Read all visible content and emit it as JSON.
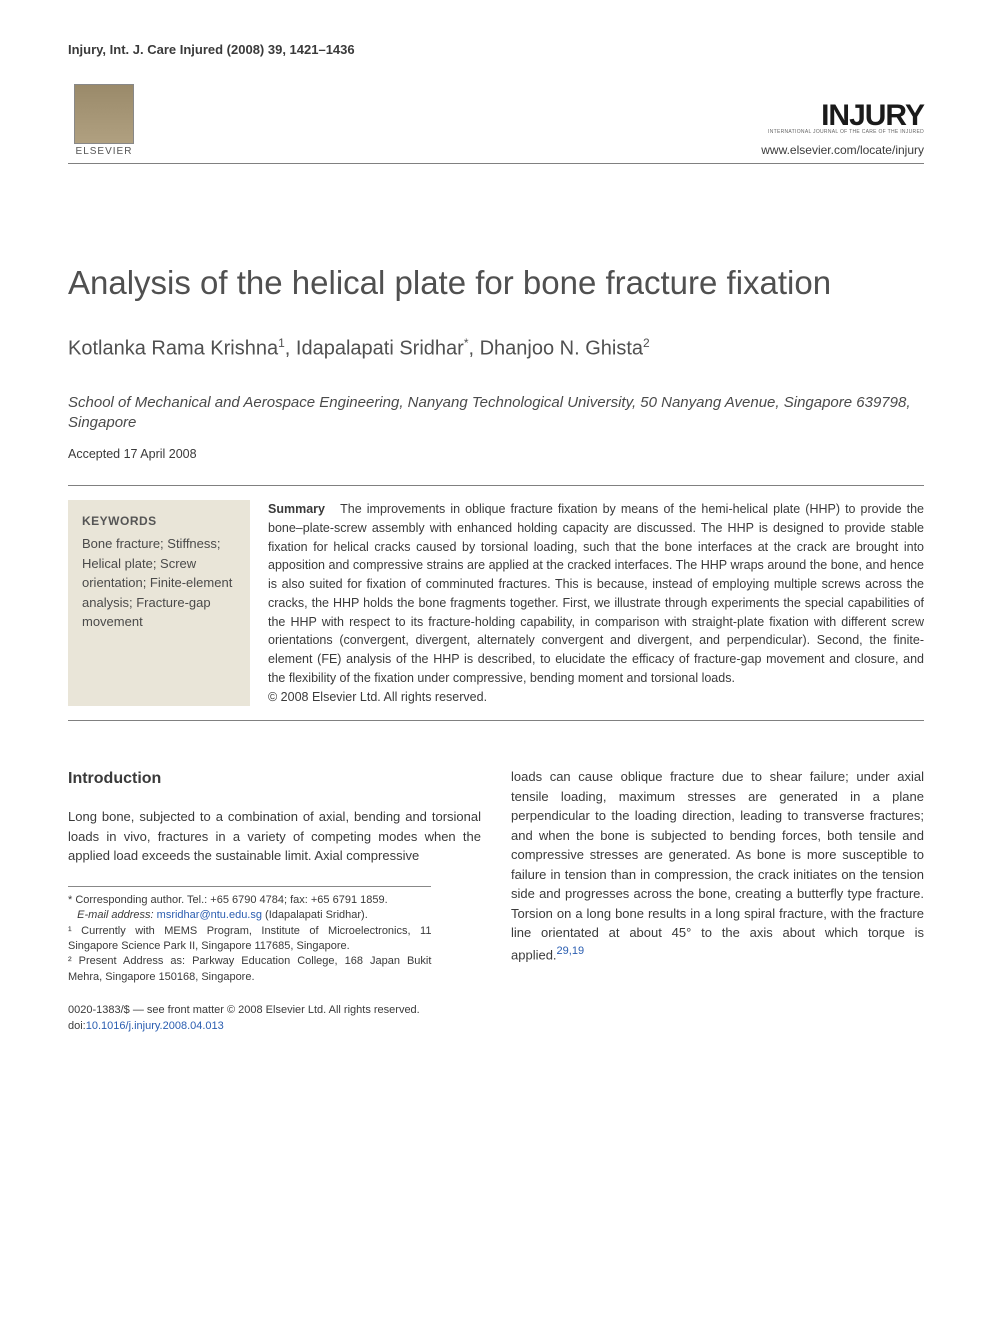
{
  "header": {
    "journal_ref": "Injury, Int. J. Care Injured (2008) 39, 1421–1436",
    "elsevier_label": "ELSEVIER",
    "injury_logo": "INJURY",
    "injury_subtitle": "INTERNATIONAL JOURNAL OF THE CARE OF THE INJURED",
    "url": "www.elsevier.com/locate/injury"
  },
  "title": "Analysis of the helical plate for bone fracture fixation",
  "authors_html": "Kotlanka Rama Krishna ¹, Idapalapati Sridhar *, Dhanjoo N. Ghista ²",
  "authors": [
    {
      "name": "Kotlanka Rama Krishna",
      "sup": "1"
    },
    {
      "name": "Idapalapati Sridhar",
      "sup": "*"
    },
    {
      "name": "Dhanjoo N. Ghista",
      "sup": "2"
    }
  ],
  "affiliation": "School of Mechanical and Aerospace Engineering, Nanyang Technological University, 50 Nanyang Avenue, Singapore 639798, Singapore",
  "accepted": "Accepted 17 April 2008",
  "keywords": {
    "title": "KEYWORDS",
    "items": "Bone fracture; Stiffness; Helical plate; Screw orientation; Finite-element analysis; Fracture-gap movement"
  },
  "summary": {
    "label": "Summary",
    "text": "The improvements in oblique fracture fixation by means of the hemi-helical plate (HHP) to provide the bone–plate-screw assembly with enhanced holding capacity are discussed. The HHP is designed to provide stable fixation for helical cracks caused by torsional loading, such that the bone interfaces at the crack are brought into apposition and compressive strains are applied at the cracked interfaces. The HHP wraps around the bone, and hence is also suited for fixation of comminuted fractures. This is because, instead of employing multiple screws across the cracks, the HHP holds the bone fragments together. First, we illustrate through experiments the special capabilities of the HHP with respect to its fracture-holding capability, in comparison with straight-plate fixation with different screw orientations (convergent, divergent, alternately convergent and divergent, and perpendicular). Second, the finite-element (FE) analysis of the HHP is described, to elucidate the efficacy of fracture-gap movement and closure, and the flexibility of the fixation under compressive, bending moment and torsional loads.",
    "copyright": "© 2008 Elsevier Ltd. All rights reserved."
  },
  "intro": {
    "heading": "Introduction",
    "col1": "Long bone, subjected to a combination of axial, bending and torsional loads in vivo, fractures in a variety of competing modes when the applied load exceeds the sustainable limit. Axial compressive",
    "col2": "loads can cause oblique fracture due to shear failure; under axial tensile loading, maximum stresses are generated in a plane perpendicular to the loading direction, leading to transverse fractures; and when the bone is subjected to bending forces, both tensile and compressive stresses are generated. As bone is more susceptible to failure in tension than in compression, the crack initiates on the tension side and progresses across the bone, creating a butterfly type fracture. Torsion on a long bone results in a long spiral fracture, with the fracture line orientated at about 45° to the axis about which torque is applied.",
    "col2_refs": "29,19"
  },
  "footnotes": {
    "corresponding": "* Corresponding author. Tel.: +65 6790 4784; fax: +65 6791 1859.",
    "email_label": "E-mail address:",
    "email": "msridhar@ntu.edu.sg",
    "email_name": "(Idapalapati Sridhar).",
    "fn1": "¹ Currently with MEMS Program, Institute of Microelectronics, 11 Singapore Science Park II, Singapore 117685, Singapore.",
    "fn2": "² Present Address as: Parkway Education College, 168 Japan Bukit Mehra, Singapore 150168, Singapore."
  },
  "bottom": {
    "line1": "0020-1383/$ — see front matter © 2008 Elsevier Ltd. All rights reserved.",
    "doi_label": "doi:",
    "doi": "10.1016/j.injury.2008.04.013"
  },
  "colors": {
    "text": "#3a3a3a",
    "link": "#2a5db0",
    "keywords_bg": "#e9e5d8",
    "rule": "#808080",
    "background": "#ffffff"
  },
  "typography": {
    "title_fontsize": 33,
    "authors_fontsize": 20,
    "body_fontsize": 13,
    "summary_fontsize": 12.5,
    "footnote_fontsize": 11
  }
}
